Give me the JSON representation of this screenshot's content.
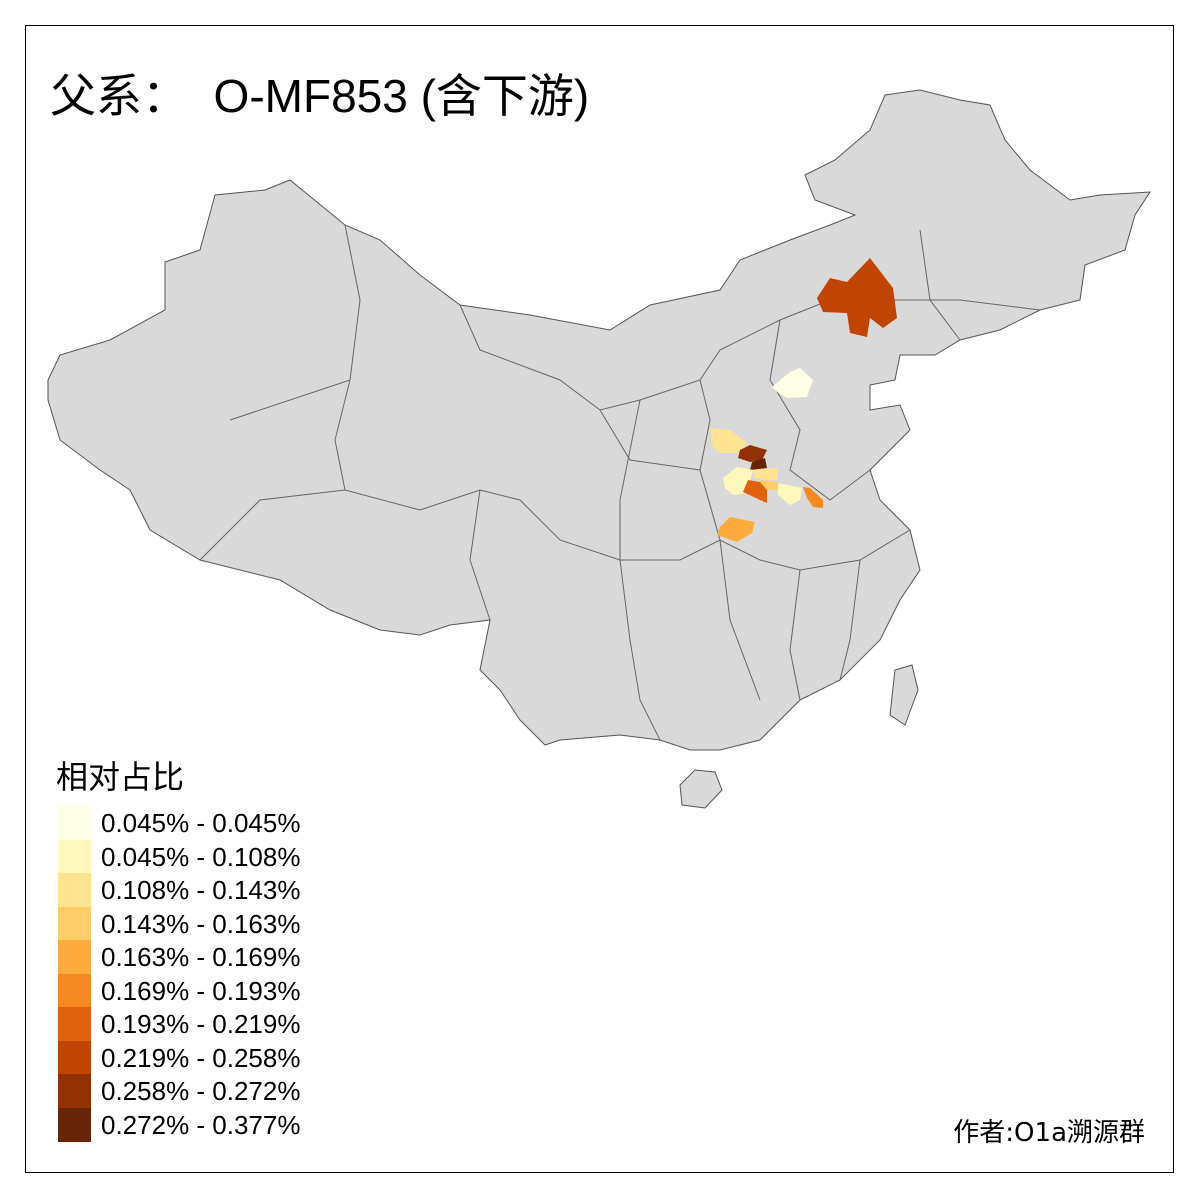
{
  "title": "父系：  O-MF853 (含下游)",
  "base_map_color": "#d9d9d9",
  "border_color": "#666666",
  "legend": {
    "title": "相对占比",
    "bins": [
      {
        "label": "0.045% - 0.045%",
        "color": "#ffffe5"
      },
      {
        "label": "0.045% - 0.108%",
        "color": "#fff7bc"
      },
      {
        "label": "0.108% - 0.143%",
        "color": "#fee391"
      },
      {
        "label": "0.143% - 0.163%",
        "color": "#fdcd6a"
      },
      {
        "label": "0.163% - 0.169%",
        "color": "#fdab3c"
      },
      {
        "label": "0.169% - 0.193%",
        "color": "#f58a22"
      },
      {
        "label": "0.193% - 0.219%",
        "color": "#e0620f"
      },
      {
        "label": "0.219% - 0.258%",
        "color": "#c04502"
      },
      {
        "label": "0.258% - 0.272%",
        "color": "#923104"
      },
      {
        "label": "0.272% - 0.377%",
        "color": "#662506"
      }
    ]
  },
  "highlighted_region_bins": [
    7,
    0,
    2,
    8,
    9,
    1,
    2,
    3,
    6,
    1,
    5,
    4
  ],
  "author": "作者:O1a溯源群"
}
